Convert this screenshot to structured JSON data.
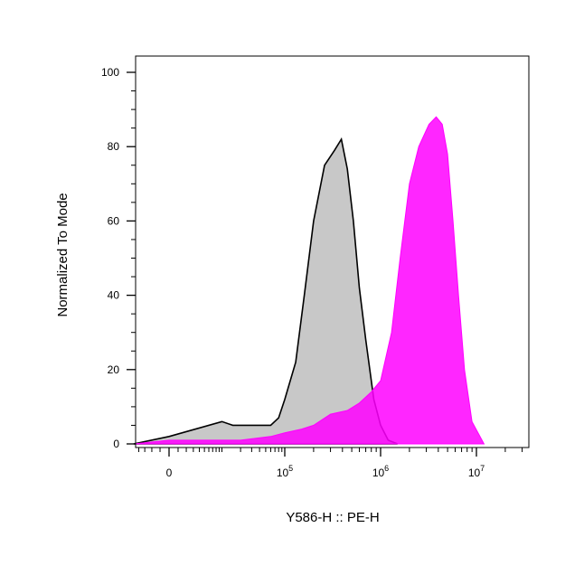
{
  "chart_data": {
    "type": "area",
    "xlabel": "Y586-H :: PE-H",
    "ylabel": "Normalized To Mode",
    "ylim": [
      0,
      100
    ],
    "xscale": "biexponential",
    "yticks": [
      0,
      20,
      40,
      60,
      80,
      100
    ],
    "xticks": [
      {
        "base": "0",
        "exp": ""
      },
      {
        "base": "10",
        "exp": "5"
      },
      {
        "base": "10",
        "exp": "6"
      },
      {
        "base": "10",
        "exp": "7"
      }
    ],
    "grid": false,
    "legend": "none",
    "series": [
      {
        "color": "#c8c8c8",
        "stroke": "#000000",
        "points": [
          [
            -5000,
            0
          ],
          [
            0,
            2
          ],
          [
            10000,
            6
          ],
          [
            15000,
            5
          ],
          [
            25000,
            5
          ],
          [
            40000,
            5
          ],
          [
            60000,
            5
          ],
          [
            80000,
            7
          ],
          [
            100000,
            12
          ],
          [
            130000,
            22
          ],
          [
            160000,
            40
          ],
          [
            200000,
            60
          ],
          [
            260000,
            75
          ],
          [
            330000,
            79
          ],
          [
            390000,
            82
          ],
          [
            450000,
            74
          ],
          [
            520000,
            60
          ],
          [
            600000,
            42
          ],
          [
            700000,
            28
          ],
          [
            850000,
            12
          ],
          [
            1000000,
            5
          ],
          [
            1200000,
            1
          ],
          [
            1500000,
            0
          ]
        ]
      },
      {
        "color": "#ff00ff",
        "stroke": "#ff00ff",
        "opacity": 0.85,
        "points": [
          [
            -5000,
            0
          ],
          [
            0,
            1
          ],
          [
            20000,
            1
          ],
          [
            60000,
            2
          ],
          [
            100000,
            3
          ],
          [
            150000,
            4
          ],
          [
            200000,
            5
          ],
          [
            300000,
            8
          ],
          [
            450000,
            9
          ],
          [
            600000,
            11
          ],
          [
            800000,
            14
          ],
          [
            1000000,
            17
          ],
          [
            1300000,
            30
          ],
          [
            1600000,
            50
          ],
          [
            2000000,
            70
          ],
          [
            2500000,
            80
          ],
          [
            3200000,
            86
          ],
          [
            3800000,
            88
          ],
          [
            4400000,
            86
          ],
          [
            5000000,
            78
          ],
          [
            5700000,
            60
          ],
          [
            6500000,
            40
          ],
          [
            7500000,
            20
          ],
          [
            9000000,
            6
          ],
          [
            12000000,
            0
          ]
        ]
      }
    ]
  }
}
